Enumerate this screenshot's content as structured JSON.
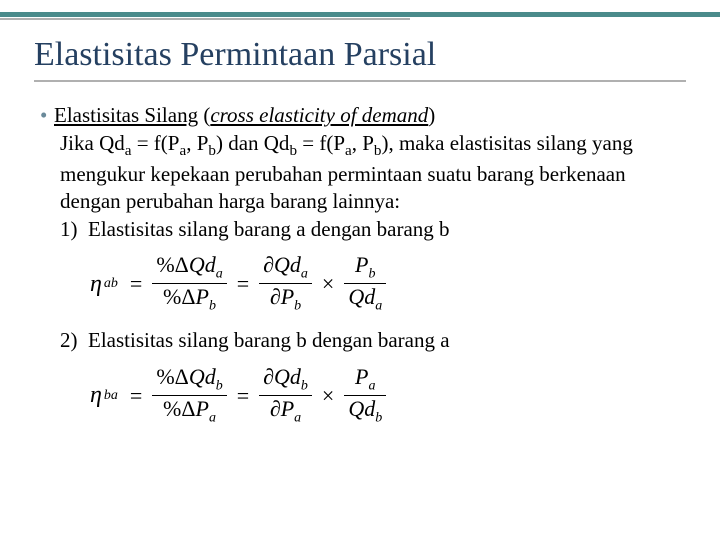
{
  "colors": {
    "title": "#254061",
    "accent_teal": "#4a8b8b",
    "rule_gray": "#b0b0b0",
    "bullet": "#6a8a9a",
    "text": "#000000",
    "background": "#ffffff"
  },
  "title": "Elastisitas Permintaan Parsial",
  "bullet": {
    "label_underline": "Elastisitas Silang",
    "label_paren_open": " (",
    "label_italic": "cross elasticity of demand",
    "label_paren_close": ")"
  },
  "intro": {
    "l1a": "Jika Qd",
    "l1a_sub": "a",
    "l1b": " = f(P",
    "l1b_sub": "a",
    "l1c": ", P",
    "l1c_sub": "b",
    "l1d": ") dan Qd",
    "l1d_sub": "b",
    "l1e": " = f(P",
    "l1e_sub": "a",
    "l1f": ", P",
    "l1f_sub": "b",
    "l1g": "), maka elastisitas silang yang mengukur kepekaan perubahan permintaan suatu barang berkenaan dengan perubahan harga barang lainnya:"
  },
  "item1": {
    "num": "1)",
    "text": "Elastisitas silang barang a dengan barang b"
  },
  "item2": {
    "num": "2)",
    "text": "Elastisitas silang barang b dengan barang a"
  },
  "formula1": {
    "eta_sub": "ab",
    "frac1_num_a": "%Δ",
    "frac1_num_b": "Qd",
    "frac1_num_sub": "a",
    "frac1_den_a": "%Δ",
    "frac1_den_b": "P",
    "frac1_den_sub": "b",
    "frac2_num_a": "∂",
    "frac2_num_b": "Qd",
    "frac2_num_sub": "a",
    "frac2_den_a": "∂",
    "frac2_den_b": "P",
    "frac2_den_sub": "b",
    "frac3_num_a": "P",
    "frac3_num_sub": "b",
    "frac3_den_a": "Qd",
    "frac3_den_sub": "a"
  },
  "formula2": {
    "eta_sub": "ba",
    "frac1_num_a": "%Δ",
    "frac1_num_b": "Qd",
    "frac1_num_sub": "b",
    "frac1_den_a": "%Δ",
    "frac1_den_b": "P",
    "frac1_den_sub": "a",
    "frac2_num_a": "∂",
    "frac2_num_b": "Qd",
    "frac2_num_sub": "b",
    "frac2_den_a": "∂",
    "frac2_den_b": "P",
    "frac2_den_sub": "a",
    "frac3_num_a": "P",
    "frac3_num_sub": "a",
    "frac3_den_a": "Qd",
    "frac3_den_sub": "b"
  },
  "symbols": {
    "eta": "η",
    "eq": "=",
    "times": "×"
  }
}
